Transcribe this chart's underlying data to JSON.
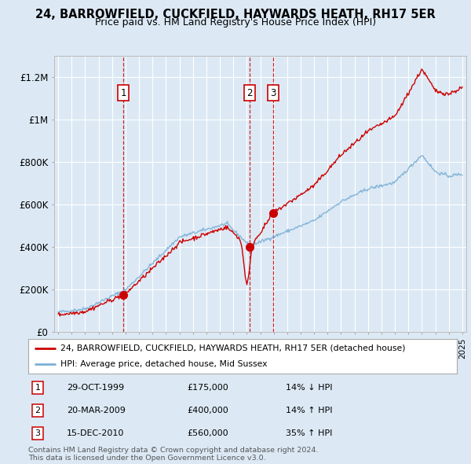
{
  "title": "24, BARROWFIELD, CUCKFIELD, HAYWARDS HEATH, RH17 5ER",
  "subtitle": "Price paid vs. HM Land Registry's House Price Index (HPI)",
  "legend_line1": "24, BARROWFIELD, CUCKFIELD, HAYWARDS HEATH, RH17 5ER (detached house)",
  "legend_line2": "HPI: Average price, detached house, Mid Sussex",
  "sale_color": "#cc0000",
  "hpi_color": "#7bafd4",
  "background_color": "#dce9f5",
  "plot_bg_color": "#dce9f5",
  "sales": [
    {
      "label": 1,
      "date_x": 1999.83,
      "price": 175000
    },
    {
      "label": 2,
      "date_x": 2009.22,
      "price": 400000
    },
    {
      "label": 3,
      "date_x": 2010.96,
      "price": 560000
    }
  ],
  "sale_labels": [
    {
      "num": 1,
      "date": "29-OCT-1999",
      "price": "£175,000",
      "hpi_rel": "14% ↓ HPI"
    },
    {
      "num": 2,
      "date": "20-MAR-2009",
      "price": "£400,000",
      "hpi_rel": "14% ↑ HPI"
    },
    {
      "num": 3,
      "date": "15-DEC-2010",
      "price": "£560,000",
      "hpi_rel": "35% ↑ HPI"
    }
  ],
  "footer": "Contains HM Land Registry data © Crown copyright and database right 2024.\nThis data is licensed under the Open Government Licence v3.0.",
  "ylim": [
    0,
    1300000
  ],
  "xlim": [
    1994.7,
    2025.3
  ],
  "yticks": [
    0,
    200000,
    400000,
    600000,
    800000,
    1000000,
    1200000
  ],
  "ytick_labels": [
    "£0",
    "£200K",
    "£400K",
    "£600K",
    "£800K",
    "£1M",
    "£1.2M"
  ]
}
